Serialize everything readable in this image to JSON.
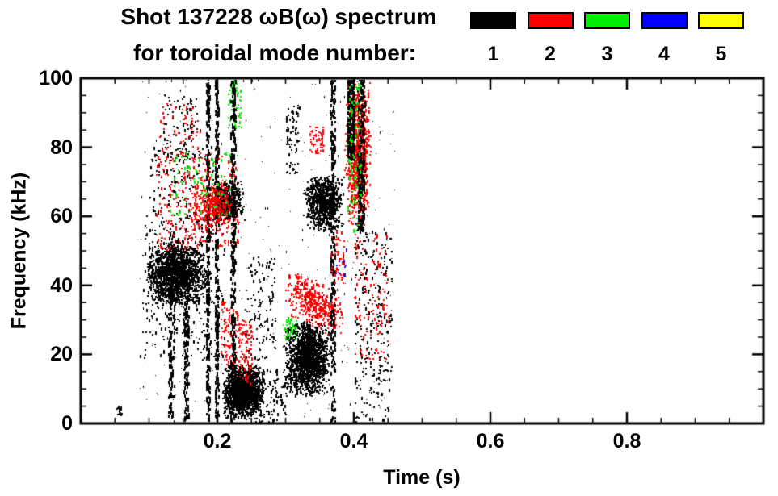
{
  "chart_data": {
    "type": "scatter",
    "title_line1": "Shot 137228 ωB(ω) spectrum",
    "title_line2": "for toroidal mode number:",
    "xlabel": "Time (s)",
    "ylabel": "Frequency (kHz)",
    "xlim": [
      0,
      1.0
    ],
    "ylim": [
      0,
      100
    ],
    "xticks": [
      0.2,
      0.4,
      0.6,
      0.8
    ],
    "xtick_labels": [
      "0.2",
      "0.4",
      "0.6",
      "0.8"
    ],
    "yticks": [
      0,
      20,
      40,
      60,
      80,
      100
    ],
    "ytick_labels": [
      "0",
      "20",
      "40",
      "60",
      "80",
      "100"
    ],
    "x_minor_step": 0.05,
    "y_minor_step": 5,
    "grid": false,
    "legend_position": "top-right",
    "background": "#ffffff",
    "frame_color": "#000000",
    "modes": [
      {
        "label": "1",
        "color": "#000000"
      },
      {
        "label": "2",
        "color": "#ff0000"
      },
      {
        "label": "3",
        "color": "#00ee00"
      },
      {
        "label": "4",
        "color": "#0000ff"
      },
      {
        "label": "5",
        "color": "#ffff00"
      }
    ],
    "seed": 1337,
    "clusters": [
      {
        "mode": 1,
        "shape": "blob",
        "t": [
          0.095,
          0.185
        ],
        "f": [
          33,
          53
        ],
        "n": 1600,
        "s": 2,
        "drift": 0
      },
      {
        "mode": 1,
        "shape": "scatter",
        "t": [
          0.085,
          0.21
        ],
        "f": [
          18,
          60
        ],
        "n": 250,
        "s": 2,
        "drift": 0
      },
      {
        "mode": 1,
        "shape": "scatter",
        "t": [
          0.1,
          0.2
        ],
        "f": [
          55,
          80
        ],
        "n": 180,
        "s": 2,
        "drift": 0
      },
      {
        "mode": 1,
        "shape": "streak",
        "t": [
          0.128,
          0.136
        ],
        "f": [
          0,
          55
        ],
        "n": 160,
        "s": 2,
        "drift": 0
      },
      {
        "mode": 1,
        "shape": "streak",
        "t": [
          0.15,
          0.158
        ],
        "f": [
          0,
          40
        ],
        "n": 120,
        "s": 2,
        "drift": 0
      },
      {
        "mode": 1,
        "shape": "streak",
        "t": [
          0.183,
          0.188
        ],
        "f": [
          0,
          100
        ],
        "n": 280,
        "s": 2,
        "drift": 0
      },
      {
        "mode": 1,
        "shape": "streak",
        "t": [
          0.196,
          0.201
        ],
        "f": [
          0,
          100
        ],
        "n": 280,
        "s": 2,
        "drift": 0
      },
      {
        "mode": 1,
        "shape": "blob",
        "t": [
          0.19,
          0.24
        ],
        "f": [
          58,
          70
        ],
        "n": 500,
        "s": 2,
        "drift": 0
      },
      {
        "mode": 1,
        "shape": "scatter",
        "t": [
          0.12,
          0.17
        ],
        "f": [
          76,
          95
        ],
        "n": 90,
        "s": 2,
        "drift": 0
      },
      {
        "mode": 2,
        "shape": "scatter",
        "t": [
          0.115,
          0.175
        ],
        "f": [
          76,
          93
        ],
        "n": 60,
        "s": 2,
        "drift": 0
      },
      {
        "mode": 2,
        "shape": "scatter",
        "t": [
          0.11,
          0.23
        ],
        "f": [
          50,
          78
        ],
        "n": 300,
        "s": 2,
        "drift": 0
      },
      {
        "mode": 2,
        "shape": "blob",
        "t": [
          0.16,
          0.225
        ],
        "f": [
          56,
          70
        ],
        "n": 280,
        "s": 2,
        "drift": 0
      },
      {
        "mode": 3,
        "shape": "scatter",
        "t": [
          0.13,
          0.23
        ],
        "f": [
          60,
          78
        ],
        "n": 90,
        "s": 2,
        "drift": 0
      },
      {
        "mode": 3,
        "shape": "scatter",
        "t": [
          0.215,
          0.235
        ],
        "f": [
          85,
          100
        ],
        "n": 60,
        "s": 2,
        "drift": 0
      },
      {
        "mode": 1,
        "shape": "blob",
        "t": [
          0.205,
          0.27
        ],
        "f": [
          1,
          17
        ],
        "n": 1500,
        "s": 2,
        "drift": 0
      },
      {
        "mode": 2,
        "shape": "scatter",
        "t": [
          0.205,
          0.25
        ],
        "f": [
          14,
          32
        ],
        "n": 200,
        "s": 2,
        "drift": -8
      },
      {
        "mode": 1,
        "shape": "streak",
        "t": [
          0.219,
          0.226
        ],
        "f": [
          0,
          100
        ],
        "n": 300,
        "s": 2,
        "drift": 0
      },
      {
        "mode": 1,
        "shape": "scatter",
        "t": [
          0.24,
          0.285
        ],
        "f": [
          18,
          48
        ],
        "n": 120,
        "s": 2,
        "drift": 0
      },
      {
        "mode": 1,
        "shape": "scatter",
        "t": [
          0.255,
          0.3
        ],
        "f": [
          0,
          15
        ],
        "n": 100,
        "s": 2,
        "drift": 0
      },
      {
        "mode": 1,
        "shape": "blob",
        "t": [
          0.295,
          0.365
        ],
        "f": [
          7,
          30
        ],
        "n": 1600,
        "s": 2,
        "drift": 0
      },
      {
        "mode": 2,
        "shape": "blob",
        "t": [
          0.295,
          0.385
        ],
        "f": [
          27,
          42
        ],
        "n": 420,
        "s": 2,
        "drift": -8
      },
      {
        "mode": 3,
        "shape": "scatter",
        "t": [
          0.295,
          0.315
        ],
        "f": [
          24,
          30
        ],
        "n": 40,
        "s": 2,
        "drift": 0
      },
      {
        "mode": 1,
        "shape": "blob",
        "t": [
          0.325,
          0.385
        ],
        "f": [
          55,
          72
        ],
        "n": 800,
        "s": 2,
        "drift": 0
      },
      {
        "mode": 1,
        "shape": "scatter",
        "t": [
          0.3,
          0.32
        ],
        "f": [
          72,
          92
        ],
        "n": 70,
        "s": 2,
        "drift": 0
      },
      {
        "mode": 2,
        "shape": "scatter",
        "t": [
          0.335,
          0.355
        ],
        "f": [
          78,
          86
        ],
        "n": 60,
        "s": 2,
        "drift": 0
      },
      {
        "mode": 1,
        "shape": "streak",
        "t": [
          0.365,
          0.372
        ],
        "f": [
          0,
          100
        ],
        "n": 300,
        "s": 2,
        "drift": 0
      },
      {
        "mode": 2,
        "shape": "blob",
        "t": [
          0.385,
          0.425
        ],
        "f": [
          55,
          100
        ],
        "n": 800,
        "s": 2,
        "drift": 0
      },
      {
        "mode": 1,
        "shape": "streak",
        "t": [
          0.39,
          0.4
        ],
        "f": [
          76,
          100
        ],
        "n": 280,
        "s": 2,
        "drift": 0
      },
      {
        "mode": 1,
        "shape": "streak",
        "t": [
          0.405,
          0.415
        ],
        "f": [
          55,
          100
        ],
        "n": 240,
        "s": 2,
        "drift": 0
      },
      {
        "mode": 3,
        "shape": "scatter",
        "t": [
          0.39,
          0.41
        ],
        "f": [
          55,
          100
        ],
        "n": 90,
        "s": 2,
        "drift": 0
      },
      {
        "mode": 1,
        "shape": "scatter",
        "t": [
          0.4,
          0.455
        ],
        "f": [
          0,
          55
        ],
        "n": 260,
        "s": 2,
        "drift": 0
      },
      {
        "mode": 2,
        "shape": "scatter",
        "t": [
          0.4,
          0.45
        ],
        "f": [
          18,
          55
        ],
        "n": 120,
        "s": 2,
        "drift": 0
      },
      {
        "mode": 2,
        "shape": "scatter",
        "t": [
          0.365,
          0.385
        ],
        "f": [
          40,
          55
        ],
        "n": 50,
        "s": 2,
        "drift": 0
      },
      {
        "mode": 4,
        "shape": "scatter",
        "t": [
          0.37,
          0.39
        ],
        "f": [
          42,
          50
        ],
        "n": 10,
        "s": 2,
        "drift": 0
      },
      {
        "mode": 1,
        "shape": "blob",
        "t": [
          0.052,
          0.06
        ],
        "f": [
          2,
          5
        ],
        "n": 15,
        "s": 2,
        "drift": 0
      },
      {
        "mode": 1,
        "shape": "scatter",
        "t": [
          0.085,
          0.46
        ],
        "f": [
          0,
          100
        ],
        "n": 350,
        "s": 1,
        "drift": 0
      }
    ]
  }
}
